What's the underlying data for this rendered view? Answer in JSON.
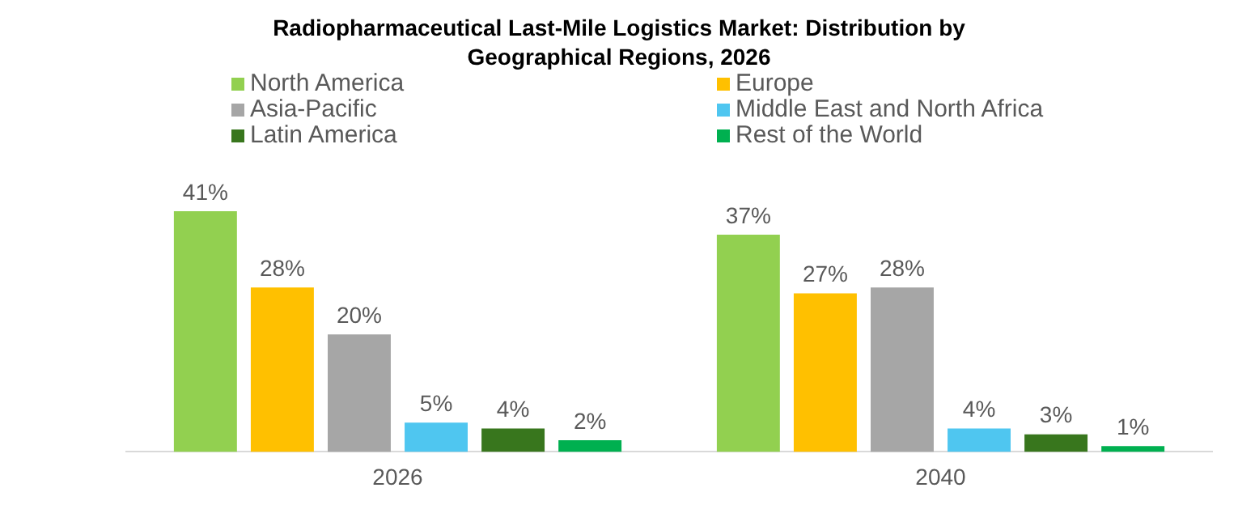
{
  "chart_data": {
    "type": "bar",
    "title": "Radiopharmaceutical Last-Mile Logistics Market: Distribution by Geographical Regions, 2026",
    "categories": [
      "2026",
      "2040"
    ],
    "series": [
      {
        "name": "North America",
        "color": "#92d050",
        "values": [
          41,
          37
        ],
        "value_labels": [
          "41%",
          "37%"
        ]
      },
      {
        "name": "Europe",
        "color": "#ffc000",
        "values": [
          28,
          27
        ],
        "value_labels": [
          "28%",
          "27%"
        ]
      },
      {
        "name": "Asia-Pacific",
        "color": "#a6a6a6",
        "values": [
          20,
          28
        ],
        "value_labels": [
          "20%",
          "28%"
        ]
      },
      {
        "name": "Middle East and North Africa",
        "color": "#4fc6f0",
        "values": [
          5,
          4
        ],
        "value_labels": [
          "5%",
          "4%"
        ]
      },
      {
        "name": "Latin America",
        "color": "#38761d",
        "values": [
          4,
          3
        ],
        "value_labels": [
          "4%",
          "3%"
        ]
      },
      {
        "name": "Rest of the World",
        "color": "#00b050",
        "values": [
          2,
          1
        ],
        "value_labels": [
          "2%",
          "1%"
        ]
      }
    ],
    "legend": "top",
    "grid": false
  }
}
